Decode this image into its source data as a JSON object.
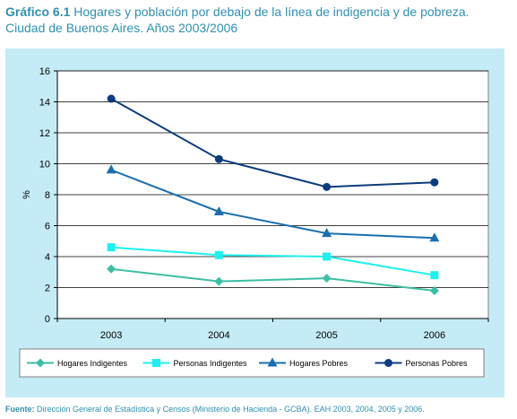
{
  "title": {
    "prefix": "Gráfico 6.1",
    "line1": "Hogares y población por debajo de la línea de indigencia y de pobreza.",
    "line2": "Ciudad de Buenos Aires. Años 2003/2006"
  },
  "source": {
    "label": "Fuente:",
    "text": "Dirección General de Estadística y Censos (Ministerio de Hacienda - GCBA). EAH 2003, 2004, 2005 y 2006."
  },
  "colors": {
    "panel_bg": "#c5ecf6",
    "plot_bg": "#ffffff",
    "title": "#2f8fb2"
  },
  "chart_data": {
    "type": "line",
    "title": "",
    "xlabel": "",
    "ylabel": "%",
    "x": [
      "2003",
      "2004",
      "2005",
      "2006"
    ],
    "ylim": [
      0,
      16
    ],
    "yticks": [
      0,
      2,
      4,
      6,
      8,
      10,
      12,
      14,
      16
    ],
    "grid": true,
    "legend_position": "bottom",
    "series": [
      {
        "name": "Hogares Indigentes",
        "values": [
          3.2,
          2.4,
          2.6,
          1.8
        ],
        "color": "#3cbfa4",
        "marker": "diamond"
      },
      {
        "name": "Personas Indigentes",
        "values": [
          4.6,
          4.1,
          4.0,
          2.8
        ],
        "color": "#1ef0f0",
        "marker": "square"
      },
      {
        "name": "Hogares Pobres",
        "values": [
          9.6,
          6.9,
          5.5,
          5.2
        ],
        "color": "#1a6fb0",
        "marker": "triangle"
      },
      {
        "name": "Personas Pobres",
        "values": [
          14.2,
          10.3,
          8.5,
          8.8
        ],
        "color": "#0d3c7d",
        "marker": "circle"
      }
    ]
  }
}
